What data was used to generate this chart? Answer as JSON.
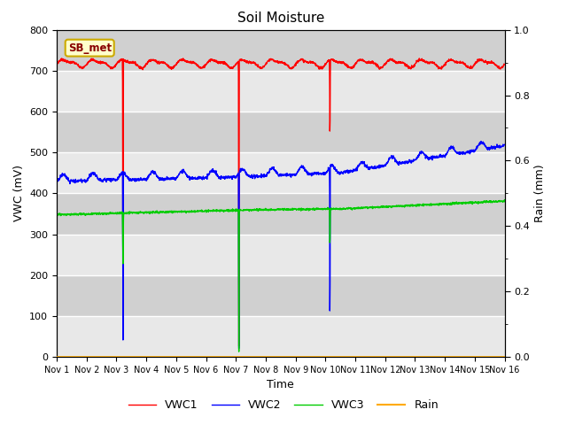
{
  "title": "Soil Moisture",
  "xlabel": "Time",
  "ylabel_left": "VWC (mV)",
  "ylabel_right": "Rain (mm)",
  "ylim_left": [
    0,
    800
  ],
  "ylim_right": [
    0.0,
    1.0
  ],
  "yticks_left": [
    0,
    100,
    200,
    300,
    400,
    500,
    600,
    700,
    800
  ],
  "yticks_right": [
    0.0,
    0.2,
    0.4,
    0.6,
    0.8,
    1.0
  ],
  "xtick_labels": [
    "Nov 1",
    "Nov 2",
    "Nov 3",
    "Nov 4",
    "Nov 5",
    "Nov 6",
    "Nov 7",
    "Nov 8",
    "Nov 9",
    "Nov 10",
    "Nov 11",
    "Nov 12",
    "Nov 13",
    "Nov 14",
    "Nov 15",
    "Nov 16"
  ],
  "bg_color": "#d8d8d8",
  "band_color_light": "#e8e8e8",
  "band_color_dark": "#d0d0d0",
  "fig_bg": "#ffffff",
  "legend_label": "SB_met",
  "legend_bg": "#ffffcc",
  "legend_border": "#ccaa00",
  "line_colors": {
    "VWC1": "#ff0000",
    "VWC2": "#0000ff",
    "VWC3": "#00cc00",
    "Rain": "#ffaa00"
  },
  "line_widths": {
    "VWC1": 1.0,
    "VWC2": 1.0,
    "VWC3": 1.0,
    "Rain": 1.5
  }
}
